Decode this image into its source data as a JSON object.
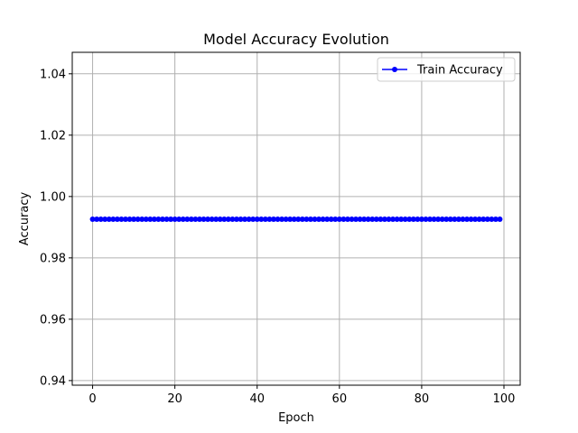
{
  "chart_data": {
    "type": "line",
    "title": "Model Accuracy Evolution",
    "xlabel": "Epoch",
    "ylabel": "Accuracy",
    "xlim": [
      -4.95,
      103.95
    ],
    "ylim": [
      0.9385,
      1.047
    ],
    "xticks": [
      0,
      20,
      40,
      60,
      80,
      100
    ],
    "xtick_labels": [
      "0",
      "20",
      "40",
      "60",
      "80",
      "100"
    ],
    "yticks": [
      0.94,
      0.96,
      0.98,
      1.0,
      1.02,
      1.04
    ],
    "ytick_labels": [
      "0.94",
      "0.96",
      "0.98",
      "1.00",
      "1.02",
      "1.04"
    ],
    "grid": true,
    "legend_position": "top-right",
    "series": [
      {
        "name": "Train Accuracy",
        "color": "#0000ff",
        "marker": "circle",
        "x_start": 0,
        "x_end": 99,
        "x_step": 1,
        "constant_value": 0.9926
      }
    ]
  }
}
